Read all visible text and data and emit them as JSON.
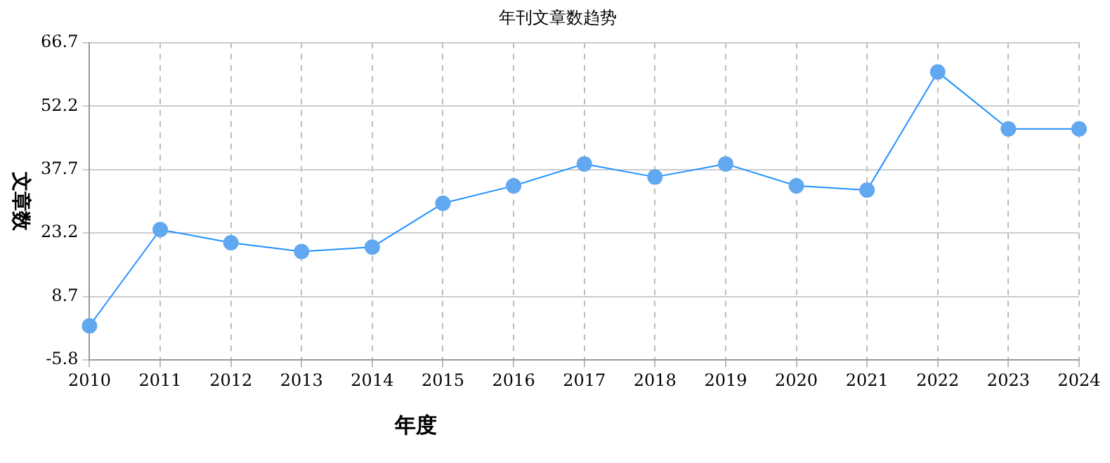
{
  "chart_data": {
    "type": "line",
    "title": "年刊文章数趋势",
    "xlabel": "年度",
    "ylabel": "文章数",
    "categories": [
      "2010",
      "2011",
      "2012",
      "2013",
      "2014",
      "2015",
      "2016",
      "2017",
      "2018",
      "2019",
      "2020",
      "2021",
      "2022",
      "2023",
      "2024"
    ],
    "series": [
      {
        "color": "#1e90ff",
        "values": [
          2,
          24,
          21,
          19,
          20,
          30,
          34,
          39,
          36,
          39,
          34,
          33,
          60,
          47,
          47
        ]
      }
    ],
    "ylim": [
      -5.8,
      66.7
    ],
    "yticks": [
      -5.8,
      8.7,
      23.2,
      37.7,
      52.2,
      66.7
    ],
    "grid": true,
    "legend": false,
    "marker": "circle",
    "line_style": "solid"
  }
}
